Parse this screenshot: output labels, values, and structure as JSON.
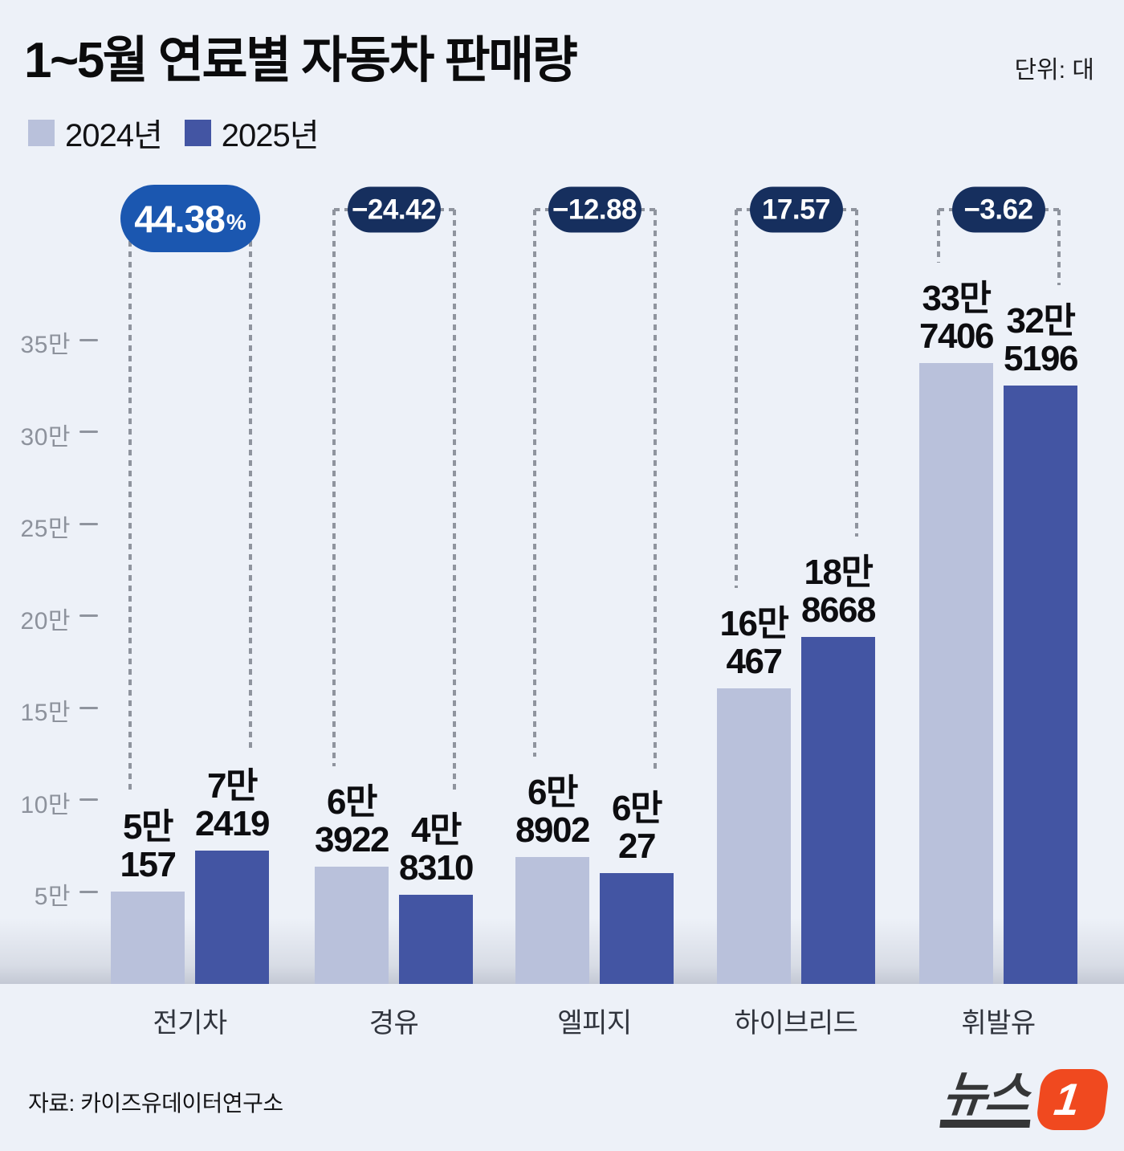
{
  "header": {
    "title": "1~5월 연료별 자동차 판매량",
    "unit": "단위: 대"
  },
  "legend": {
    "items": [
      {
        "label": "2024년",
        "color": "#b9c1db"
      },
      {
        "label": "2025년",
        "color": "#4355a3"
      }
    ]
  },
  "chart_data": {
    "type": "bar",
    "title": "1~5월 연료별 자동차 판매량",
    "unit": "대",
    "categories": [
      "전기차",
      "경유",
      "엘피지",
      "하이브리드",
      "휘발유"
    ],
    "series": [
      {
        "name": "2024년",
        "color": "#b9c1db",
        "values": [
          50157,
          63922,
          68902,
          160467,
          337406
        ],
        "value_labels": [
          [
            "5만",
            "157"
          ],
          [
            "6만",
            "3922"
          ],
          [
            "6만",
            "8902"
          ],
          [
            "16만",
            "467"
          ],
          [
            "33만",
            "7406"
          ]
        ]
      },
      {
        "name": "2025년",
        "color": "#4355a3",
        "values": [
          72419,
          48310,
          60027,
          188668,
          325196
        ],
        "value_labels": [
          [
            "7만",
            "2419"
          ],
          [
            "4만",
            "8310"
          ],
          [
            "6만",
            "27"
          ],
          [
            "18만",
            "8668"
          ],
          [
            "32만",
            "5196"
          ]
        ]
      }
    ],
    "pct_change": [
      {
        "value": "44.38",
        "suffix": "%",
        "highlight": true
      },
      {
        "value": "−24.42",
        "suffix": "",
        "highlight": false
      },
      {
        "value": "−12.88",
        "suffix": "",
        "highlight": false
      },
      {
        "value": "17.57",
        "suffix": "",
        "highlight": false
      },
      {
        "value": "−3.62",
        "suffix": "",
        "highlight": false
      }
    ],
    "y_axis": {
      "tick_labels": [
        "5만",
        "10만",
        "15만",
        "20만",
        "25만",
        "30만",
        "35만"
      ],
      "tick_values": [
        50000,
        100000,
        150000,
        200000,
        250000,
        300000,
        350000
      ],
      "max": 350000,
      "grid": false
    },
    "legend_position": "top-left",
    "colors": {
      "background": "#edf1f8",
      "pill_highlight_bg": "#1b57b0",
      "pill_bg": "#162f5e",
      "dash": "#8f949e",
      "axis_text": "#8d929c",
      "logo_accent": "#f0491f"
    }
  },
  "footer": {
    "source": "자료: 카이즈유데이터연구소",
    "logo_text": "뉴스",
    "logo_accent": "1"
  }
}
